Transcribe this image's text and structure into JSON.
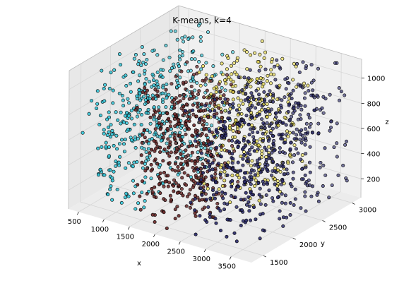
{
  "chart_data": {
    "type": "scatter",
    "projection": "3d",
    "title": "K-means, k=4",
    "xlabel": "x",
    "ylabel": "y",
    "zlabel": "z",
    "xlim": [
      300,
      3900
    ],
    "ylim": [
      1300,
      3150
    ],
    "zlim": [
      50,
      1150
    ],
    "xticks": [
      "500",
      "1000",
      "1500",
      "2000",
      "2500",
      "3000",
      "3500"
    ],
    "yticks": [
      "1500",
      "2000",
      "2500",
      "3000"
    ],
    "zticks": [
      "200",
      "400",
      "600",
      "800",
      "1000"
    ],
    "grid": true,
    "clusters": [
      {
        "color": "#36c5d8",
        "count": 460,
        "x_range": [
          400,
          1500
        ],
        "y_range": [
          1400,
          3100
        ],
        "z_range": [
          80,
          1100
        ]
      },
      {
        "color": "#6b2a2a",
        "count": 420,
        "x_range": [
          1400,
          2600
        ],
        "y_range": [
          1400,
          2300
        ],
        "z_range": [
          80,
          1100
        ]
      },
      {
        "color": "#e6d84a",
        "count": 300,
        "x_range": [
          1700,
          3000
        ],
        "y_range": [
          2200,
          3100
        ],
        "z_range": [
          80,
          1100
        ]
      },
      {
        "color": "#2a2a6a",
        "count": 560,
        "x_range": [
          2400,
          3800
        ],
        "y_range": [
          1400,
          3100
        ],
        "z_range": [
          80,
          1100
        ]
      }
    ]
  }
}
